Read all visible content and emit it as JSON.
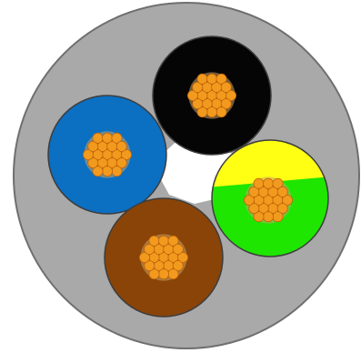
{
  "diagram": {
    "sheath_color": "#a9a9a9",
    "sheath_stroke": "#6f6f6f",
    "filler_color": "#ffffff",
    "strand_color": "#f29a1e",
    "strand_stroke": "#c0650a",
    "core_stroke": "#3d3d3d",
    "cores": [
      {
        "name": "black",
        "colors": [
          "#050505"
        ]
      },
      {
        "name": "blue",
        "colors": [
          "#0b6fc2"
        ]
      },
      {
        "name": "green-yellow",
        "colors": [
          "#ffff14",
          "#1ee600"
        ]
      },
      {
        "name": "brown",
        "colors": [
          "#8a4408"
        ]
      }
    ]
  }
}
